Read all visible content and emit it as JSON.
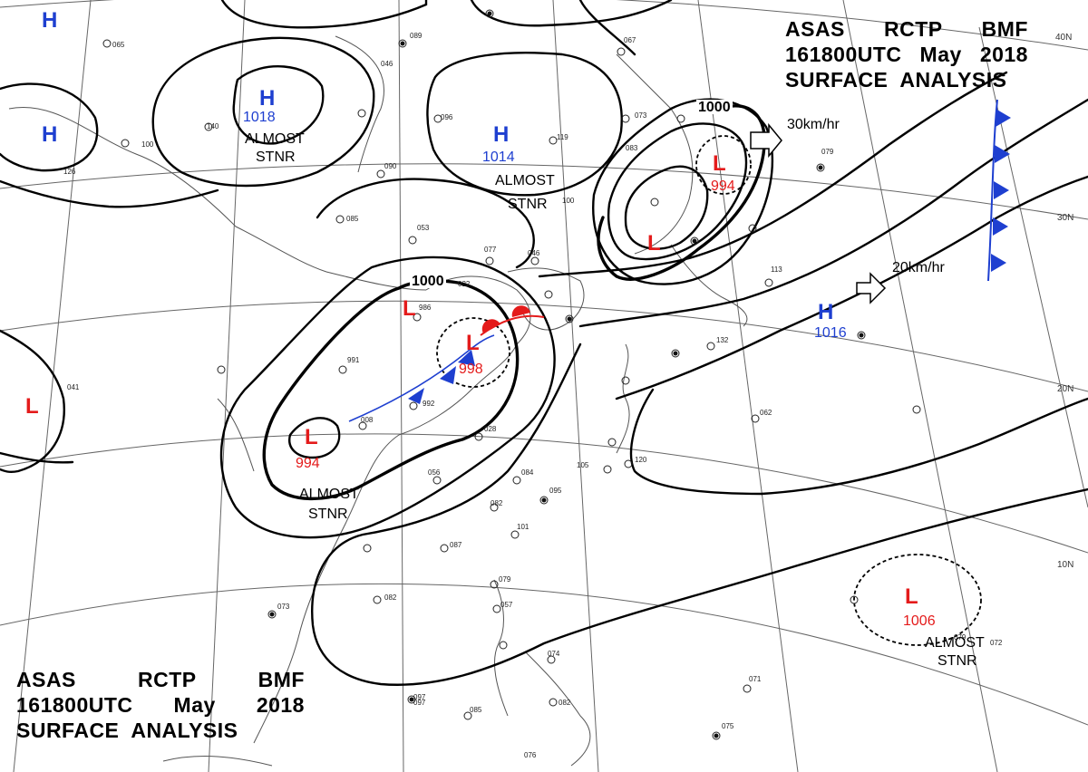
{
  "header_top": {
    "line1": [
      "ASAS",
      "RCTP",
      "BMF"
    ],
    "line2": [
      "161800UTC",
      "May",
      "2018"
    ],
    "line3": "SURFACE  ANALYSIS"
  },
  "header_bottom": {
    "line1": [
      "ASAS",
      "RCTP",
      "BMF"
    ],
    "line2": [
      "161800UTC",
      "May",
      "2018"
    ],
    "line3": "SURFACE  ANALYSIS"
  },
  "latitude_labels": [
    "40N",
    "30N",
    "20N",
    "10N"
  ],
  "pressure_systems": [
    {
      "type": "H",
      "value": "",
      "note": ""
    },
    {
      "type": "H",
      "value": "",
      "note": ""
    },
    {
      "type": "H",
      "value": "1018",
      "note": "ALMOST STNR"
    },
    {
      "type": "H",
      "value": "1014",
      "note": "ALMOST STNR"
    },
    {
      "type": "H",
      "value": "1016",
      "note": ""
    },
    {
      "type": "L",
      "value": "",
      "note": ""
    },
    {
      "type": "L",
      "value": "",
      "note": ""
    },
    {
      "type": "L",
      "value": "998",
      "note": ""
    },
    {
      "type": "L",
      "value": "994",
      "note": "ALMOST STNR"
    },
    {
      "type": "L",
      "value": "994",
      "note": ""
    },
    {
      "type": "L",
      "value": "",
      "note": ""
    },
    {
      "type": "L",
      "value": "1006",
      "note": "ALMOST STNR"
    }
  ],
  "isobar_labels": [
    "1000",
    "1000"
  ],
  "movement_arrows": [
    "30km/hr",
    "20km/hr"
  ],
  "stnr_notes": [
    {
      "line1": "ALMOST",
      "line2": "STNR"
    },
    {
      "line1": "ALMOST",
      "line2": "STNR"
    },
    {
      "line1": "ALMOST",
      "line2": "STNR"
    },
    {
      "line1": "ALMOST",
      "line2": "STNR"
    }
  ],
  "station_obs": [
    "097",
    "046",
    "085",
    "090",
    "053",
    "077",
    "046",
    "022",
    "986",
    "991",
    "992",
    "008",
    "028",
    "056",
    "084",
    "095",
    "082",
    "101",
    "087",
    "073",
    "082",
    "079",
    "057",
    "079",
    "097",
    "085",
    "074",
    "082",
    "076",
    "105",
    "120",
    "132",
    "113",
    "079",
    "062",
    "071",
    "075",
    "072",
    "096",
    "119",
    "073",
    "083",
    "100",
    "067",
    "089",
    "041",
    "100",
    "126",
    "140",
    "065"
  ],
  "colors": {
    "isobar": "#000000",
    "high": "#1e3fd0",
    "low": "#e41b1b",
    "cold_front": "#1e3fd0",
    "warm_front": "#e41b1b",
    "coast": "#555555",
    "grid": "#555555"
  }
}
